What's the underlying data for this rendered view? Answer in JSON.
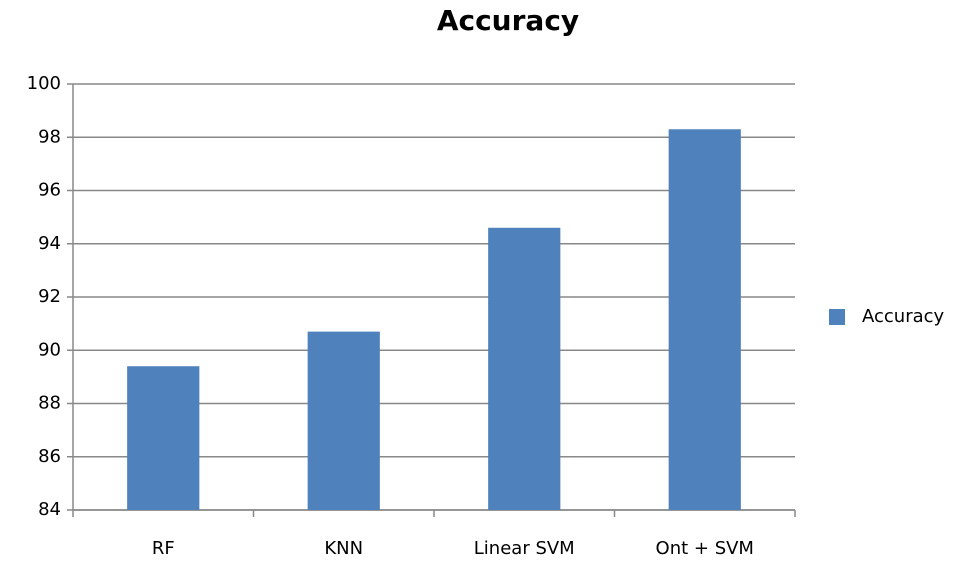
{
  "chart_data": {
    "type": "bar",
    "title": "Accuracy",
    "categories": [
      "RF",
      "KNN",
      "Linear SVM",
      "Ont + SVM"
    ],
    "series": [
      {
        "name": "Accuracy",
        "color": "#4f81bd",
        "values": [
          89.4,
          90.7,
          94.6,
          98.3
        ]
      }
    ],
    "ylim": [
      84,
      100
    ],
    "yticks": [
      84,
      86,
      88,
      90,
      92,
      94,
      96,
      98,
      100
    ],
    "grid": true,
    "legend": "right"
  }
}
